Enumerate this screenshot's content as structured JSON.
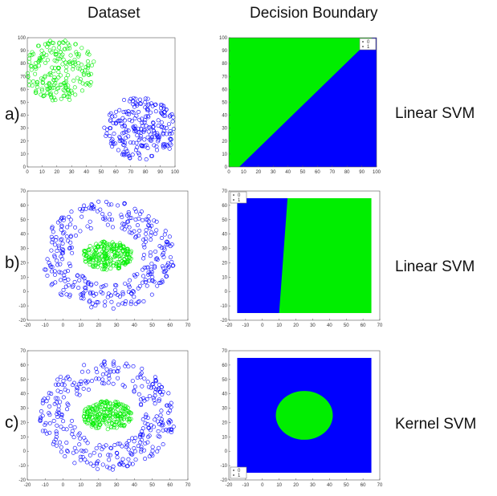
{
  "headers": {
    "dataset": "Dataset",
    "boundary": "Decision Boundary"
  },
  "rows": [
    {
      "label": "a)",
      "method": "Linear SVM"
    },
    {
      "label": "b)",
      "method": "Linear SVM"
    },
    {
      "label": "c)",
      "method": "Kernel SVM"
    }
  ],
  "colors": {
    "class0": "#0000ff",
    "class1": "#00ee00"
  },
  "chart_data": [
    {
      "type": "scatter",
      "panel": "a-dataset",
      "xlim": [
        0,
        100
      ],
      "ylim": [
        0,
        100
      ],
      "xticks": [
        "0",
        "10",
        "20",
        "30",
        "40",
        "50",
        "60",
        "70",
        "80",
        "90",
        "100"
      ],
      "yticks": [
        "0",
        "10",
        "20",
        "30",
        "40",
        "50",
        "60",
        "70",
        "80",
        "90",
        "100"
      ],
      "series": [
        {
          "color": "#00ee00",
          "shape": "disk",
          "center": [
            22,
            75
          ],
          "radius": 24,
          "count": 220
        },
        {
          "color": "#0000ff",
          "shape": "disk",
          "center": [
            77,
            30
          ],
          "radius": 25,
          "count": 230
        }
      ]
    },
    {
      "type": "heatmap",
      "panel": "a-boundary",
      "xlim": [
        0,
        100
      ],
      "ylim": [
        0,
        100
      ],
      "xticks": [
        "0",
        "10",
        "20",
        "30",
        "40",
        "50",
        "60",
        "70",
        "80",
        "90",
        "100"
      ],
      "yticks": [
        "0",
        "10",
        "20",
        "30",
        "40",
        "50",
        "60",
        "70",
        "80",
        "90",
        "100"
      ],
      "region_xlim": [
        0,
        100
      ],
      "region_ylim": [
        0,
        100
      ],
      "background": "#0000ff",
      "green_polygon": [
        [
          0,
          0
        ],
        [
          7,
          0
        ],
        [
          97,
          100
        ],
        [
          0,
          100
        ]
      ],
      "legend": {
        "entries": [
          "0",
          "1"
        ],
        "position": "top-right"
      }
    },
    {
      "type": "scatter",
      "panel": "b-dataset",
      "xlim": [
        -20,
        70
      ],
      "ylim": [
        -20,
        70
      ],
      "xticks": [
        "-20",
        "-10",
        "0",
        "10",
        "20",
        "30",
        "40",
        "50",
        "60",
        "70"
      ],
      "yticks": [
        "-20",
        "-10",
        "0",
        "10",
        "20",
        "30",
        "40",
        "50",
        "60",
        "70"
      ],
      "series": [
        {
          "color": "#0000ff",
          "shape": "ring",
          "center": [
            25,
            25
          ],
          "r_inner": 20,
          "r_outer": 38,
          "count": 330
        },
        {
          "color": "#00ee00",
          "shape": "ellipse",
          "center": [
            25,
            25
          ],
          "rx": 14,
          "ry": 10,
          "count": 220
        }
      ]
    },
    {
      "type": "heatmap",
      "panel": "b-boundary",
      "xlim": [
        -20,
        70
      ],
      "ylim": [
        -20,
        70
      ],
      "xticks": [
        "-20",
        "-10",
        "0",
        "10",
        "20",
        "30",
        "40",
        "50",
        "60",
        "70"
      ],
      "yticks": [
        "-20",
        "-10",
        "0",
        "10",
        "20",
        "30",
        "40",
        "50",
        "60",
        "70"
      ],
      "region_xlim": [
        -15,
        65
      ],
      "region_ylim": [
        -15,
        65
      ],
      "background": "#00ee00",
      "blue_polygon": [
        [
          -15,
          -15
        ],
        [
          10,
          -15
        ],
        [
          15,
          65
        ],
        [
          -15,
          65
        ]
      ],
      "legend": {
        "entries": [
          "0",
          "1"
        ],
        "position": "top-left"
      }
    },
    {
      "type": "scatter",
      "panel": "c-dataset",
      "xlim": [
        -20,
        70
      ],
      "ylim": [
        -20,
        70
      ],
      "xticks": [
        "-20",
        "-10",
        "0",
        "10",
        "20",
        "30",
        "40",
        "50",
        "60",
        "70"
      ],
      "yticks": [
        "-20",
        "-10",
        "0",
        "10",
        "20",
        "30",
        "40",
        "50",
        "60",
        "70"
      ],
      "series": [
        {
          "color": "#0000ff",
          "shape": "ring",
          "center": [
            25,
            25
          ],
          "r_inner": 20,
          "r_outer": 38,
          "count": 330
        },
        {
          "color": "#00ee00",
          "shape": "ellipse",
          "center": [
            25,
            25
          ],
          "rx": 14,
          "ry": 10,
          "count": 220
        }
      ]
    },
    {
      "type": "heatmap",
      "panel": "c-boundary",
      "xlim": [
        -20,
        70
      ],
      "ylim": [
        -20,
        70
      ],
      "xticks": [
        "-20",
        "-10",
        "0",
        "10",
        "20",
        "30",
        "40",
        "50",
        "60",
        "70"
      ],
      "yticks": [
        "-20",
        "-10",
        "0",
        "10",
        "20",
        "30",
        "40",
        "50",
        "60",
        "70"
      ],
      "region_xlim": [
        -15,
        65
      ],
      "region_ylim": [
        -15,
        65
      ],
      "background": "#0000ff",
      "green_ellipse": {
        "center": [
          25,
          25
        ],
        "rx": 17,
        "ry": 17
      },
      "legend": {
        "entries": [
          "0",
          "1"
        ],
        "position": "bottom-left"
      }
    }
  ]
}
